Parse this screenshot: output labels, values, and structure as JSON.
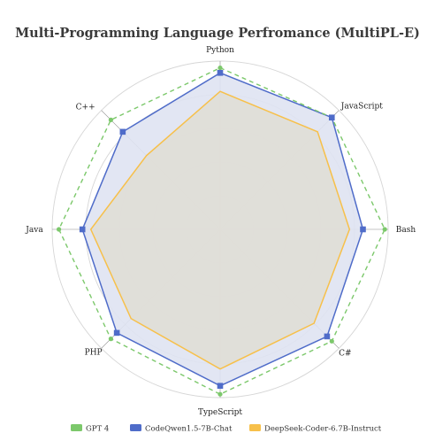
{
  "chart_data": {
    "type": "radar",
    "title": "Multi-Programming Language Perfromance (MultiPL-E)",
    "axes": [
      "Python",
      "JavaScript",
      "Bash",
      "C#",
      "TypeScript",
      "PHP",
      "Java",
      "C++"
    ],
    "rlim": [
      0,
      1
    ],
    "grid": true,
    "legend_position": "bottom",
    "series": [
      {
        "name": "GPT 4",
        "values": [
          0.96,
          0.94,
          0.98,
          0.94,
          0.98,
          0.92,
          0.96,
          0.92
        ],
        "color": "#7cc86b",
        "line_style": "dashed",
        "marker": "circle"
      },
      {
        "name": "CodeQwen1.5-7B-Chat",
        "values": [
          0.93,
          0.94,
          0.85,
          0.9,
          0.93,
          0.87,
          0.82,
          0.82
        ],
        "color": "#4f6cc9",
        "fill": "#dfe3f2",
        "line_style": "solid",
        "marker": "square"
      },
      {
        "name": "DeepSeek-Coder-6.7B-Instruct",
        "values": [
          0.82,
          0.82,
          0.77,
          0.79,
          0.83,
          0.75,
          0.77,
          0.62
        ],
        "color": "#f7c04a",
        "fill": "#e0ded6",
        "line_style": "solid",
        "marker": "none"
      }
    ]
  }
}
